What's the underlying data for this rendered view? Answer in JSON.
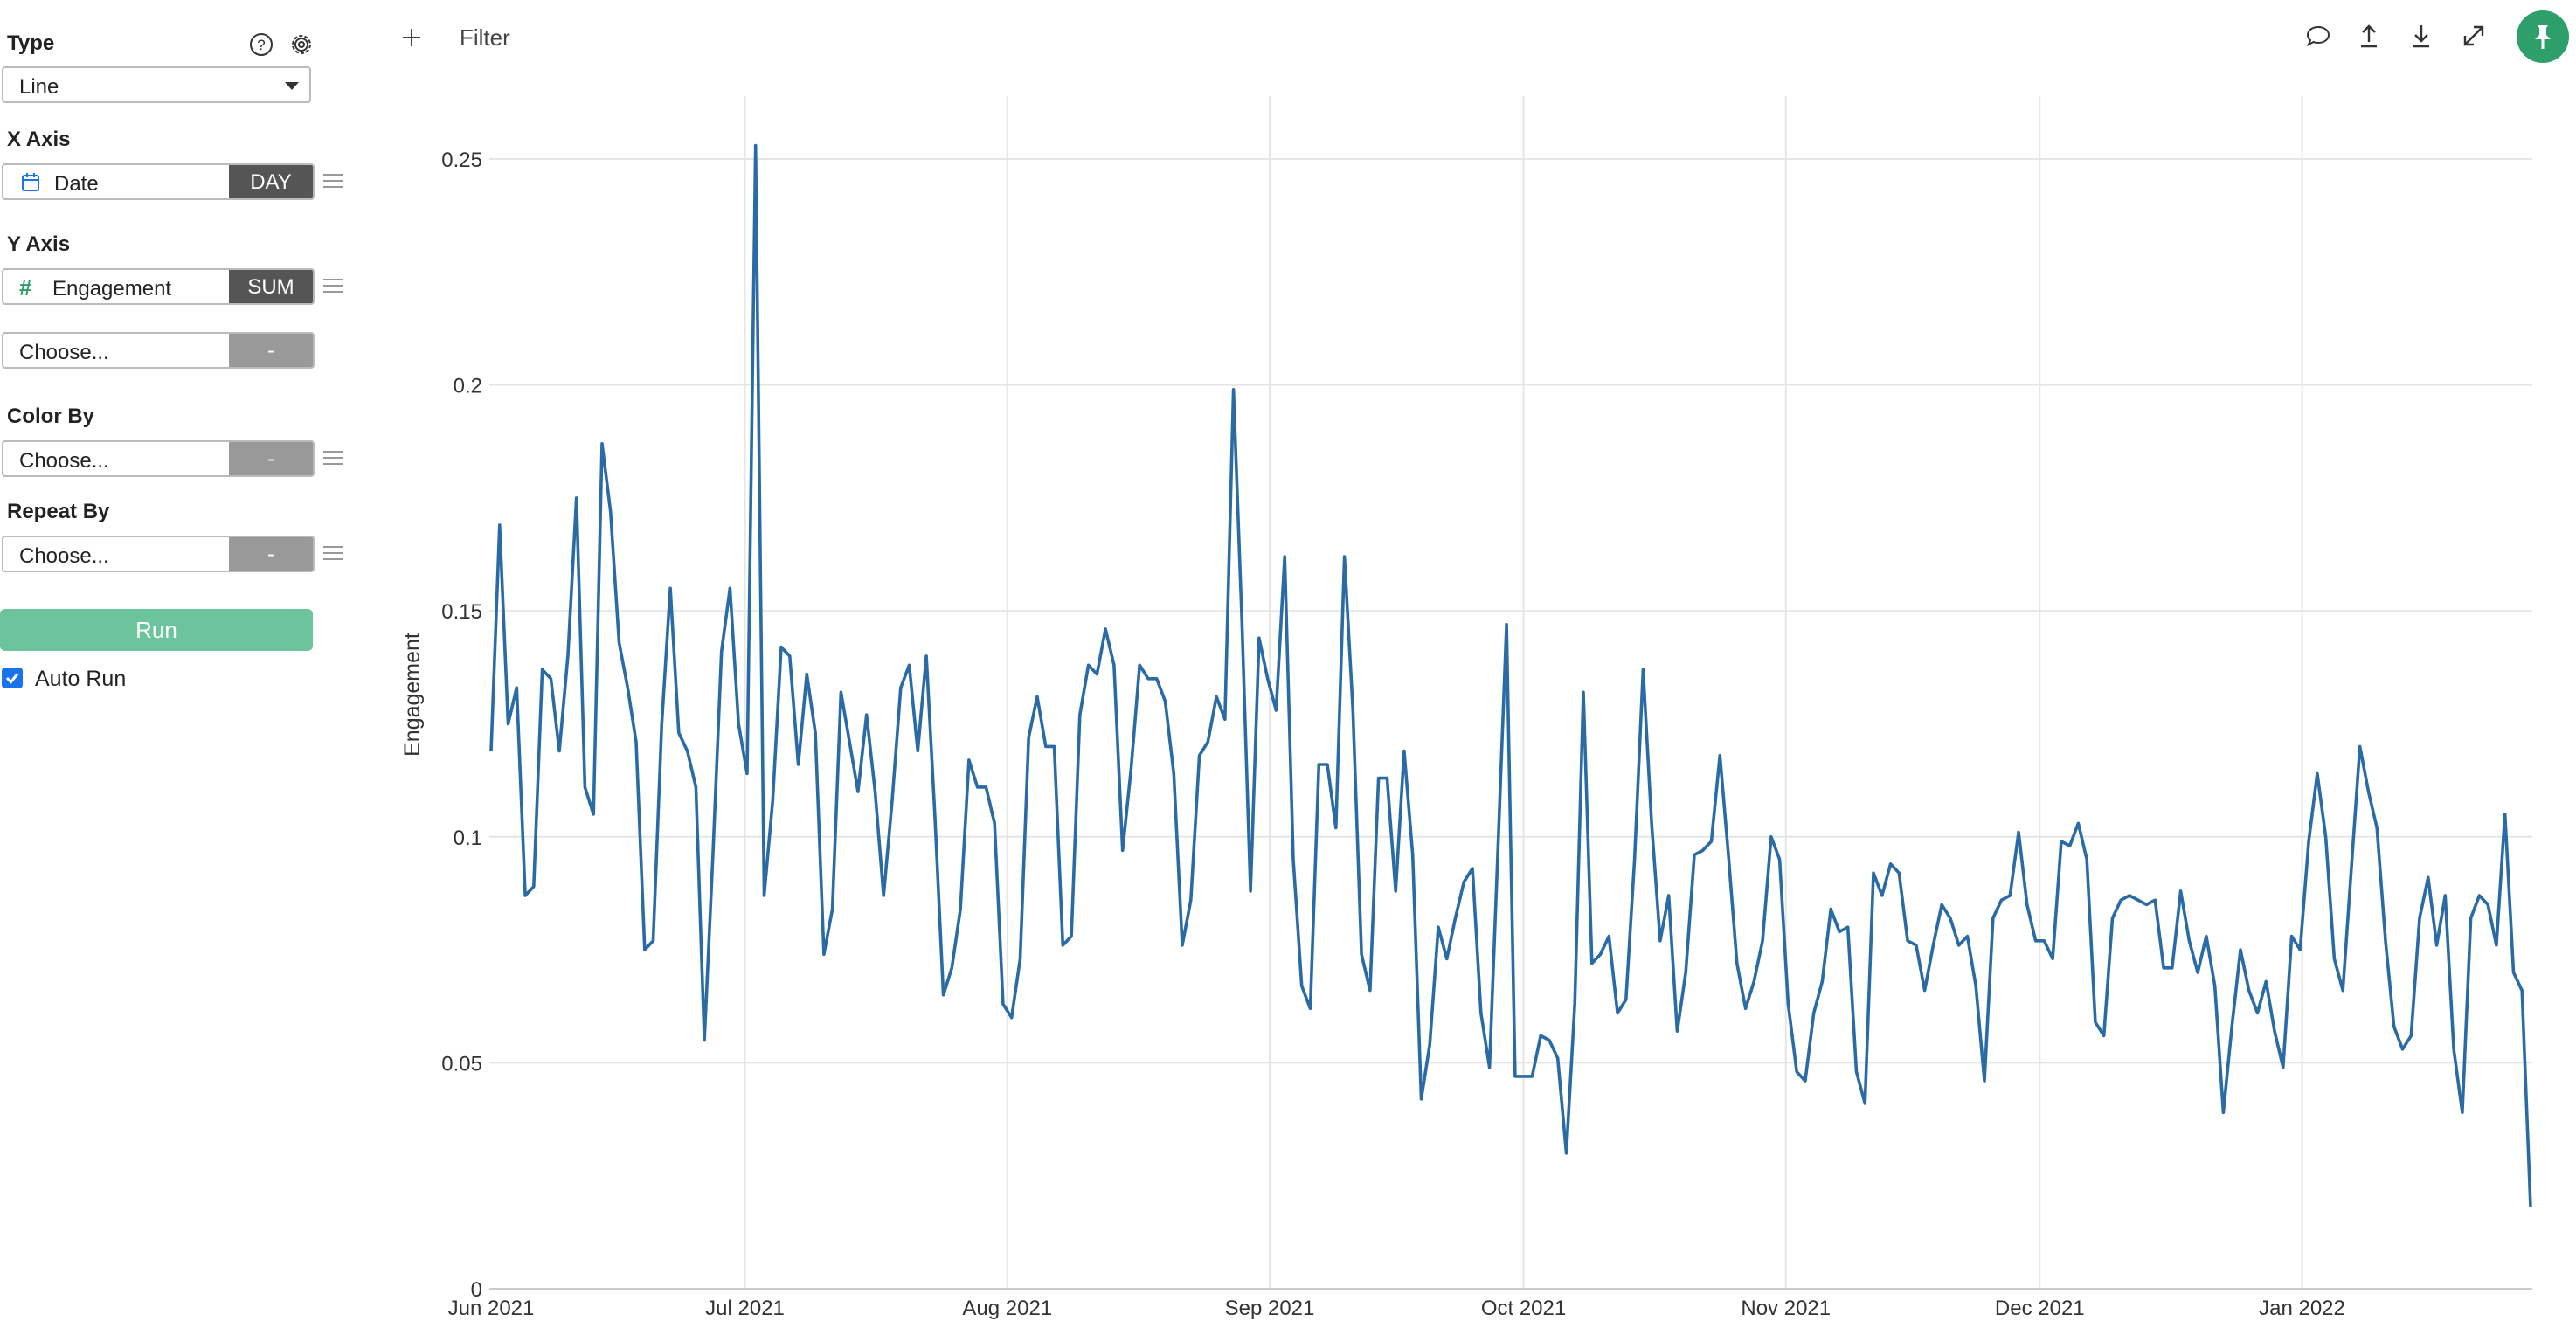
{
  "sidebar": {
    "type_label": "Type",
    "type_value": "Line",
    "x_axis_label": "X Axis",
    "x_field": "Date",
    "x_agg": "DAY",
    "y_axis_label": "Y Axis",
    "y_field": "Engagement",
    "y_agg": "SUM",
    "y2_placeholder": "Choose...",
    "y2_agg": "-",
    "color_by_label": "Color By",
    "color_placeholder": "Choose...",
    "color_agg": "-",
    "repeat_by_label": "Repeat By",
    "repeat_placeholder": "Choose...",
    "repeat_agg": "-",
    "run_label": "Run",
    "auto_run_label": "Auto Run",
    "auto_run_checked": true
  },
  "toolbar": {
    "filter_label": "Filter",
    "icons": [
      "comment-icon",
      "upload-icon",
      "download-icon",
      "expand-icon",
      "pin-icon"
    ]
  },
  "colors": {
    "line": "#2a6aa5",
    "run_button": "#6bc49b",
    "pin_button": "#2e9e6b",
    "agg_dark": "#555555",
    "agg_empty": "#999999"
  },
  "chart_data": {
    "type": "line",
    "ylabel": "Engagement",
    "xlabel": "",
    "ylim": [
      0,
      0.25
    ],
    "yticks": [
      "0",
      "0.05",
      "0.1",
      "0.15",
      "0.2",
      "0.25"
    ],
    "xticks": [
      "Jun 2021",
      "Jul 2021",
      "Aug 2021",
      "Sep 2021",
      "Oct 2021",
      "Nov 2021",
      "Dec 2021",
      "Jan 2022"
    ],
    "grid": true,
    "x_start": "2021-06-01",
    "x_end": "2022-01-28",
    "series": [
      {
        "values": [
          0.119,
          0.169,
          0.125,
          0.133,
          0.087,
          0.089,
          0.137,
          0.135,
          0.119,
          0.14,
          0.175,
          0.111,
          0.105,
          0.187,
          0.172,
          0.143,
          0.133,
          0.121,
          0.075,
          0.077,
          0.125,
          0.155,
          0.123,
          0.119,
          0.111,
          0.055,
          0.096,
          0.141,
          0.155,
          0.125,
          0.114,
          0.253,
          0.087,
          0.108,
          0.142,
          0.14,
          0.116,
          0.136,
          0.123,
          0.074,
          0.084,
          0.132,
          0.121,
          0.11,
          0.127,
          0.11,
          0.087,
          0.108,
          0.133,
          0.138,
          0.119,
          0.14,
          0.105,
          0.065,
          0.071,
          0.084,
          0.117,
          0.111,
          0.111,
          0.103,
          0.063,
          0.06,
          0.073,
          0.122,
          0.131,
          0.12,
          0.12,
          0.076,
          0.078,
          0.127,
          0.138,
          0.136,
          0.146,
          0.138,
          0.097,
          0.115,
          0.138,
          0.135,
          0.135,
          0.13,
          0.114,
          0.076,
          0.086,
          0.118,
          0.121,
          0.131,
          0.126,
          0.199,
          0.147,
          0.088,
          0.144,
          0.135,
          0.128,
          0.162,
          0.095,
          0.067,
          0.062,
          0.116,
          0.116,
          0.102,
          0.162,
          0.128,
          0.074,
          0.066,
          0.113,
          0.113,
          0.088,
          0.119,
          0.096,
          0.042,
          0.054,
          0.08,
          0.073,
          0.082,
          0.09,
          0.093,
          0.061,
          0.049,
          0.098,
          0.147,
          0.047,
          0.047,
          0.047,
          0.056,
          0.055,
          0.051,
          0.03,
          0.063,
          0.132,
          0.072,
          0.074,
          0.078,
          0.061,
          0.064,
          0.095,
          0.137,
          0.103,
          0.077,
          0.087,
          0.057,
          0.07,
          0.096,
          0.097,
          0.099,
          0.118,
          0.096,
          0.072,
          0.062,
          0.068,
          0.077,
          0.1,
          0.095,
          0.063,
          0.048,
          0.046,
          0.061,
          0.068,
          0.084,
          0.079,
          0.08,
          0.048,
          0.041,
          0.092,
          0.087,
          0.094,
          0.092,
          0.077,
          0.076,
          0.066,
          0.076,
          0.085,
          0.082,
          0.076,
          0.078,
          0.067,
          0.046,
          0.082,
          0.086,
          0.087,
          0.101,
          0.085,
          0.077,
          0.077,
          0.073,
          0.099,
          0.098,
          0.103,
          0.095,
          0.059,
          0.056,
          0.082,
          0.086,
          0.087,
          0.086,
          0.085,
          0.086,
          0.071,
          0.071,
          0.088,
          0.077,
          0.07,
          0.078,
          0.067,
          0.039,
          0.058,
          0.075,
          0.066,
          0.061,
          0.068,
          0.057,
          0.049,
          0.078,
          0.075,
          0.099,
          0.114,
          0.1,
          0.073,
          0.066,
          0.093,
          0.12,
          0.11,
          0.102,
          0.077,
          0.058,
          0.053,
          0.056,
          0.082,
          0.091,
          0.076,
          0.087,
          0.053,
          0.039,
          0.082,
          0.087,
          0.085,
          0.076,
          0.105,
          0.07,
          0.066,
          0.018
        ]
      }
    ]
  }
}
